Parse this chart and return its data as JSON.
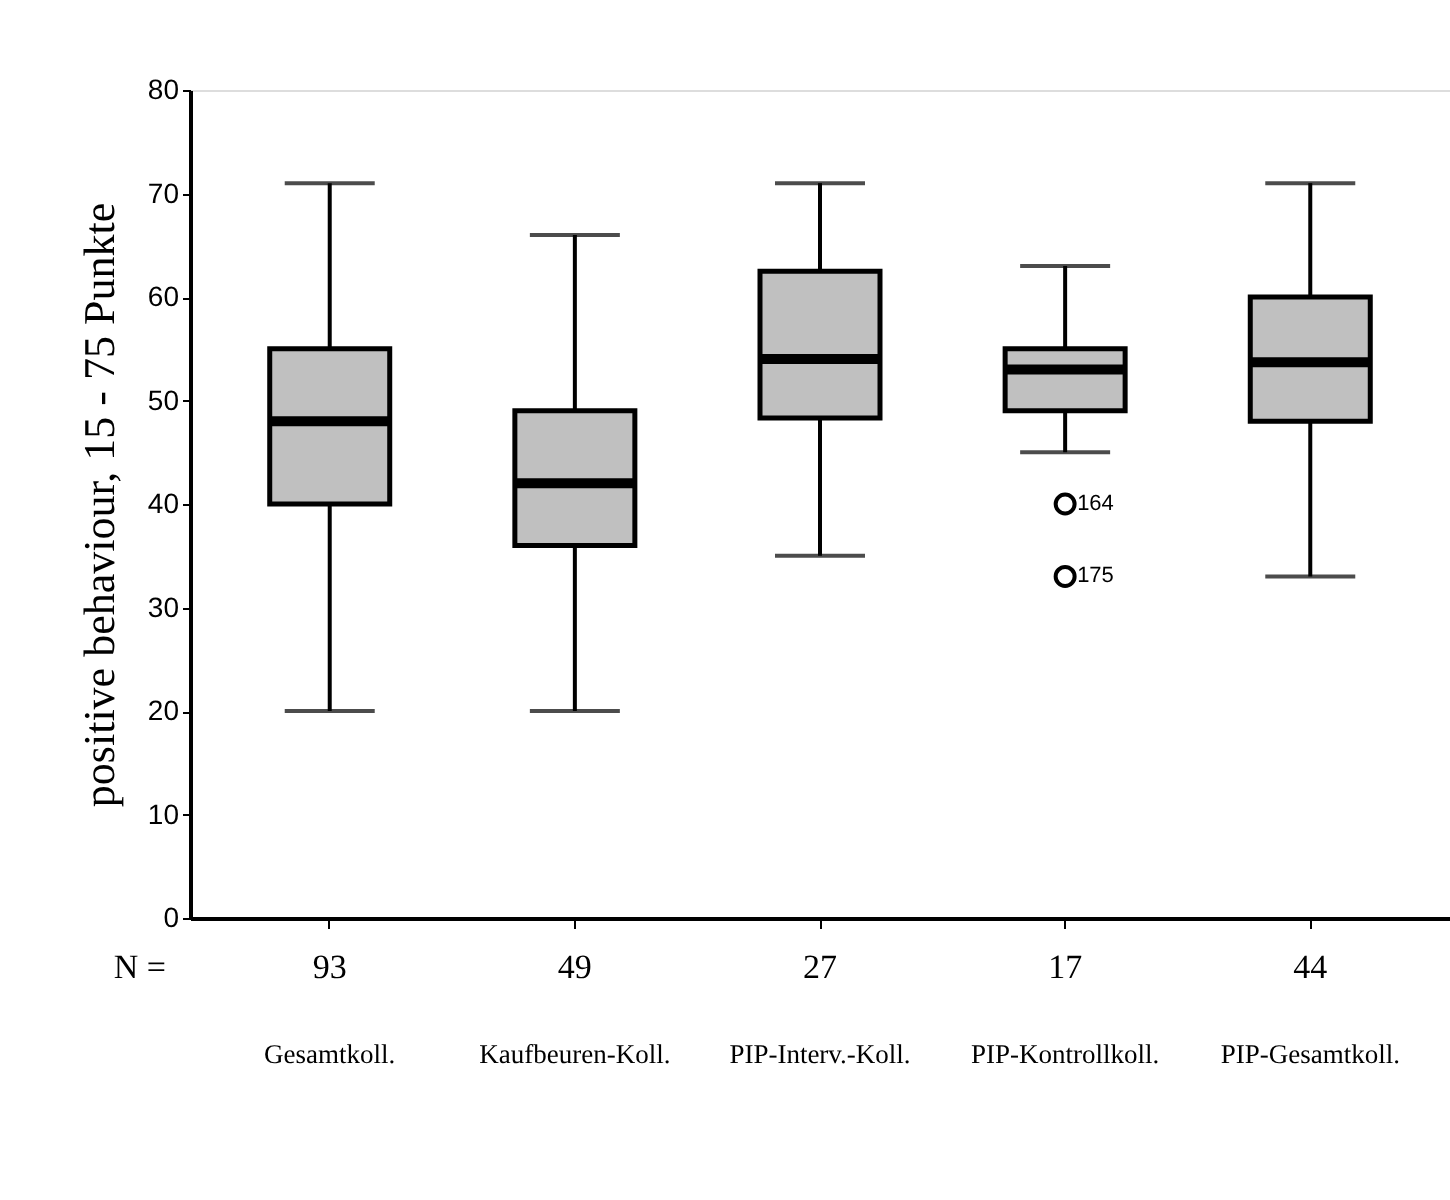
{
  "chart_data": {
    "type": "box",
    "ylabel": "positive behaviour, 15 - 75 Punkte",
    "categories": [
      "Gesamtkoll.",
      "Kaufbeuren-Koll.",
      "PIP-Interv.-Koll.",
      "PIP-Kontrollkoll.",
      "PIP-Gesamtkoll."
    ],
    "boxes": [
      {
        "low": 20,
        "q1": 40,
        "median": 48,
        "q3": 55,
        "high": 71
      },
      {
        "low": 20,
        "q1": 36,
        "median": 42,
        "q3": 49,
        "high": 66
      },
      {
        "low": 35,
        "q1": 48.3,
        "median": 54,
        "q3": 62.5,
        "high": 71
      },
      {
        "low": 45,
        "q1": 49,
        "median": 53,
        "q3": 55,
        "high": 63,
        "outliers": [
          40,
          33
        ]
      },
      {
        "low": 33,
        "q1": 48,
        "median": 53.7,
        "q3": 60,
        "high": 71
      }
    ],
    "color": "#c0c0c0",
    "ylim": [
      0,
      80
    ],
    "yticks": [
      0,
      10,
      20,
      30,
      40,
      50,
      60,
      70,
      80
    ],
    "grid": false,
    "marker": "circle",
    "annotations": [
      "N =",
      {
        "text": "93",
        "x": "Gesamtkoll."
      },
      {
        "text": "49",
        "x": "Kaufbeuren-Koll."
      },
      {
        "text": "27",
        "x": "PIP-Interv.-Koll."
      },
      {
        "text": "17",
        "x": "PIP-Kontrollkoll."
      },
      {
        "text": "44",
        "x": "PIP-Gesamtkoll."
      },
      "164",
      "175"
    ]
  }
}
